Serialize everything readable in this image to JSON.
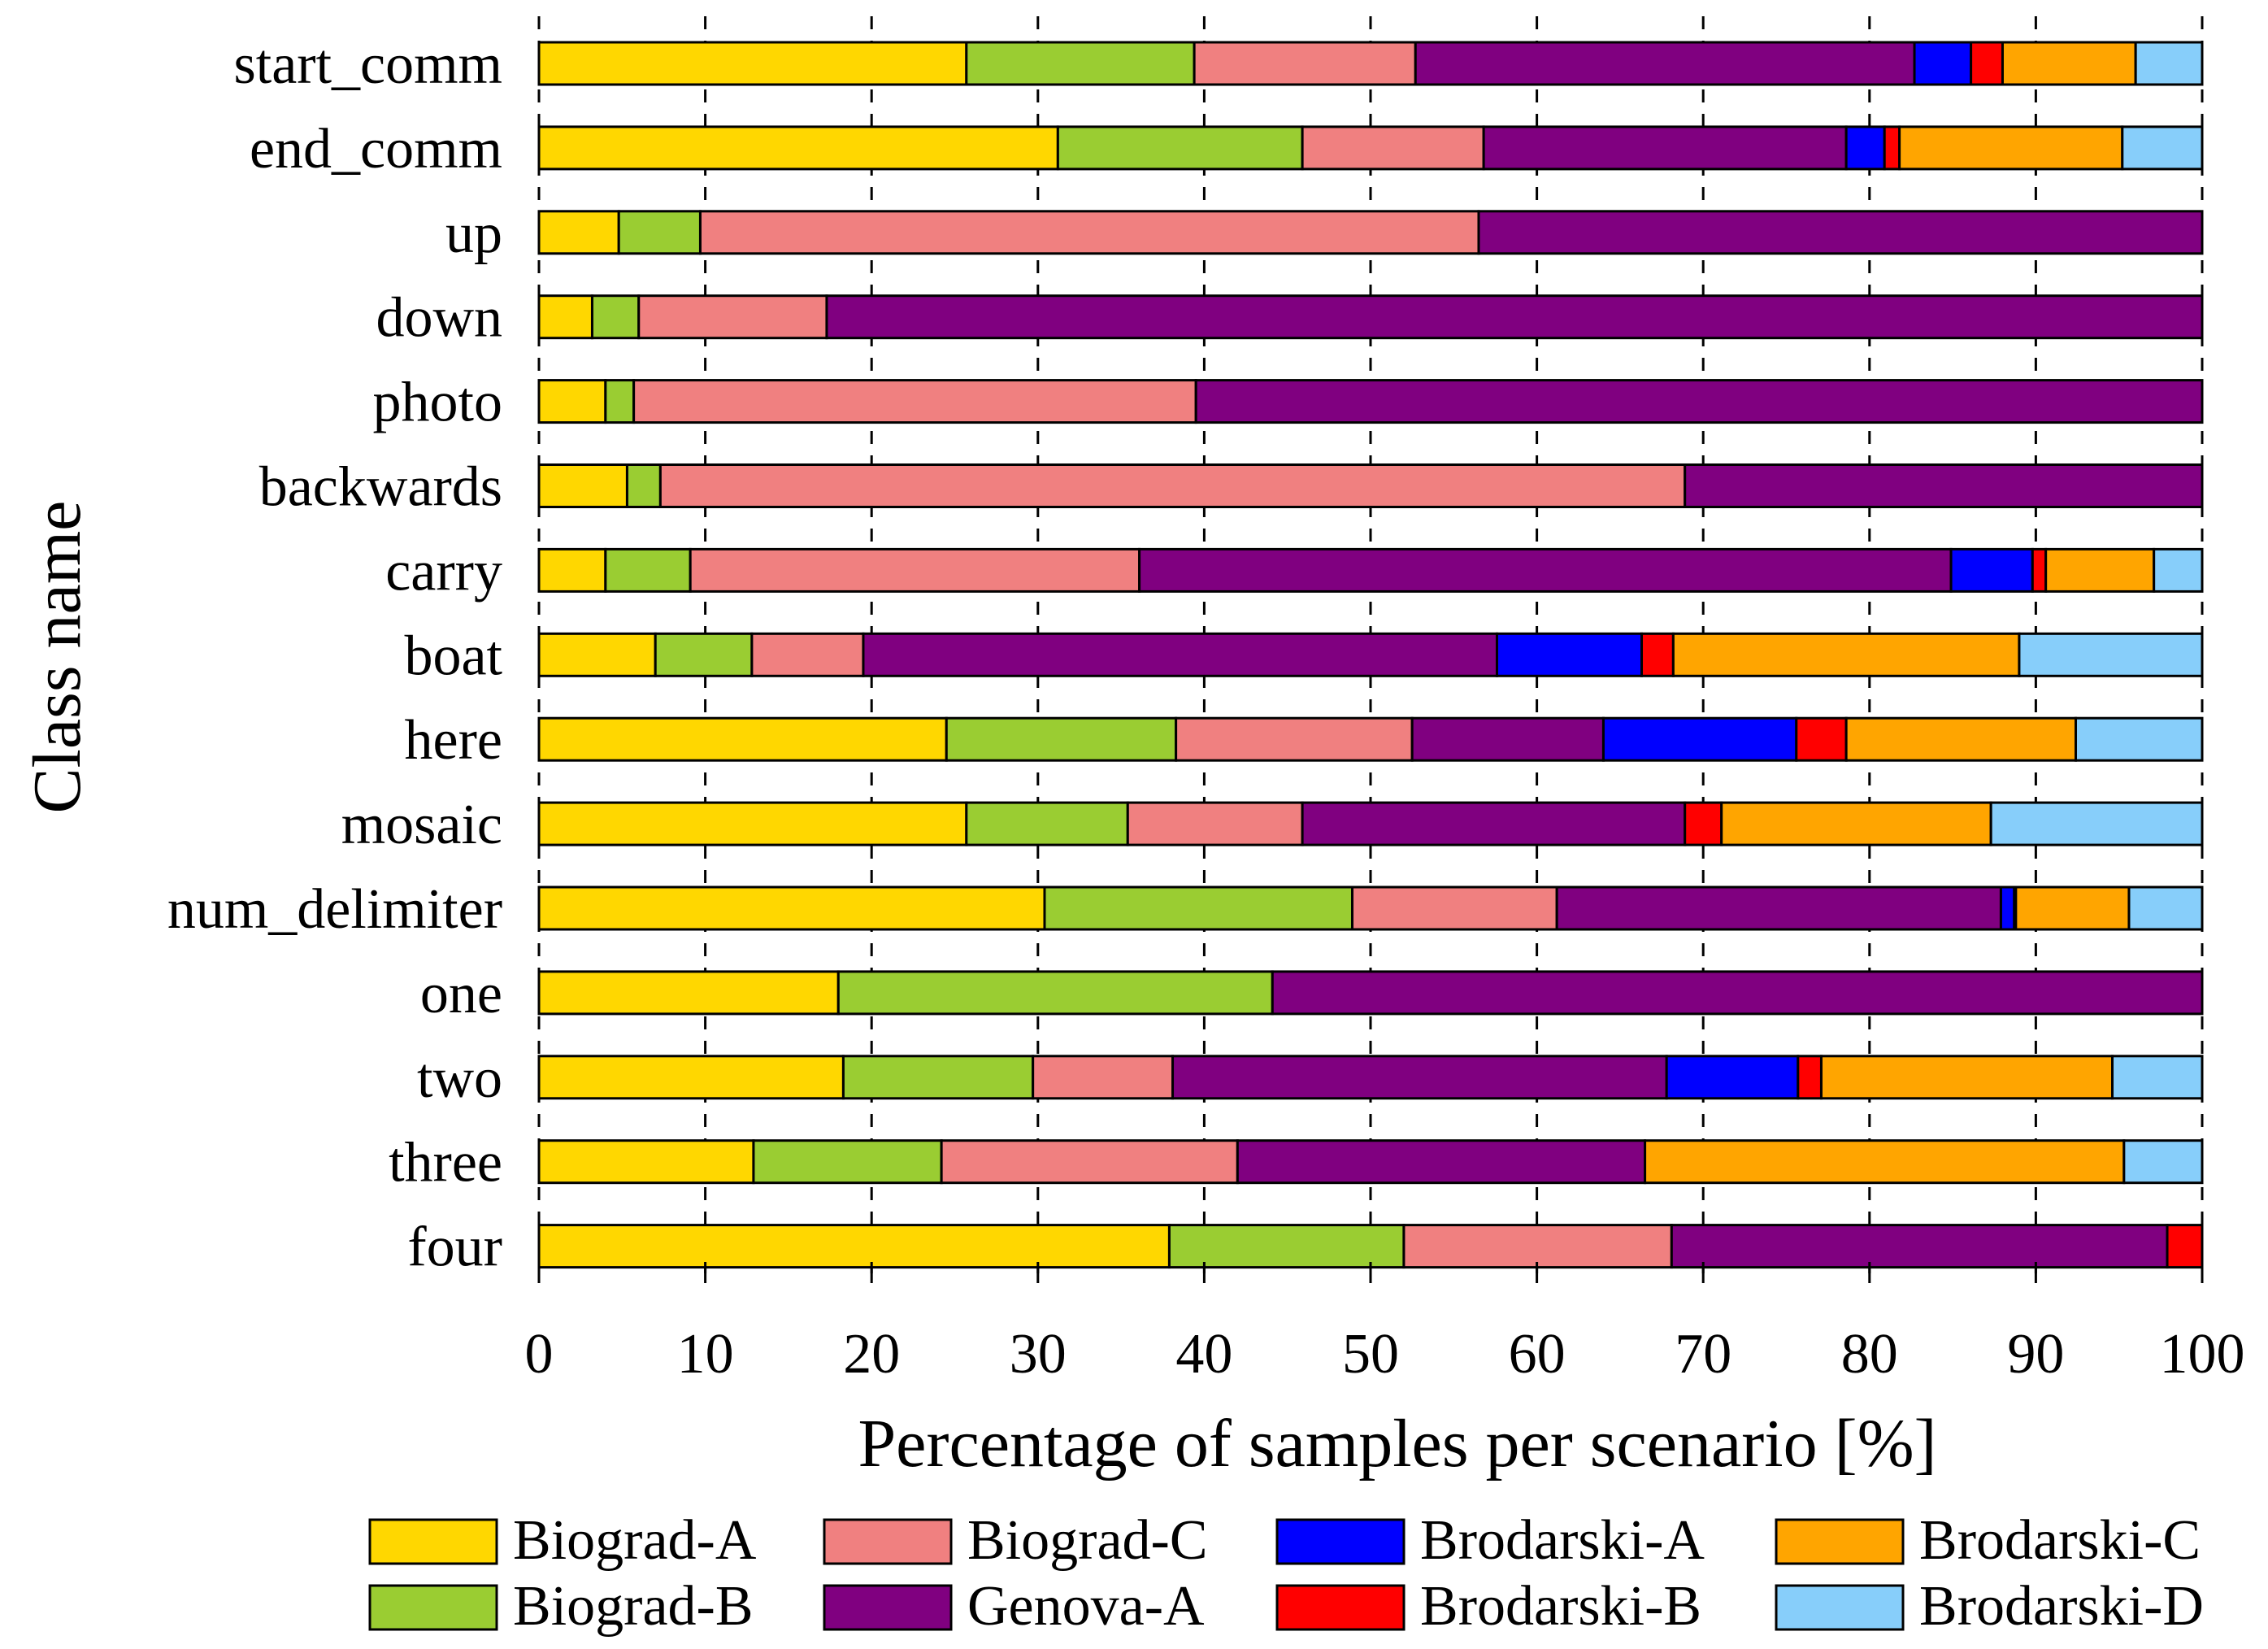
{
  "chart_data": {
    "type": "bar",
    "orientation": "horizontal",
    "stacked": true,
    "title": "",
    "xlabel": "Percentage of samples per scenario [%]",
    "ylabel": "Class name",
    "xlim": [
      0,
      100
    ],
    "xticks": [
      "0",
      "10",
      "20",
      "30",
      "40",
      "50",
      "60",
      "70",
      "80",
      "90",
      "100"
    ],
    "grid": "vertical dashed",
    "legend_position": "bottom",
    "categories": [
      "start_comm",
      "end_comm",
      "up",
      "down",
      "photo",
      "backwards",
      "carry",
      "boat",
      "here",
      "mosaic",
      "num_delimiter",
      "one",
      "two",
      "three",
      "four"
    ],
    "series": [
      {
        "name": "Biograd-A",
        "color": "#FFD700",
        "values": [
          25.7,
          31.2,
          4.8,
          3.2,
          4.0,
          5.3,
          4.0,
          7.0,
          24.5,
          25.7,
          30.4,
          18.0,
          18.3,
          12.9,
          37.9
        ]
      },
      {
        "name": "Biograd-B",
        "color": "#9ACD32",
        "values": [
          13.7,
          14.7,
          4.9,
          2.8,
          1.7,
          2.0,
          5.1,
          5.8,
          13.8,
          9.7,
          18.5,
          26.1,
          11.4,
          11.3,
          14.1
        ]
      },
      {
        "name": "Biograd-C",
        "color": "#F08080",
        "values": [
          13.3,
          10.9,
          46.8,
          11.3,
          33.8,
          61.6,
          27.0,
          6.7,
          14.2,
          10.5,
          12.3,
          0,
          8.4,
          17.8,
          16.1
        ]
      },
      {
        "name": "Genova-A",
        "color": "#800080",
        "values": [
          30.0,
          21.8,
          43.5,
          82.7,
          60.5,
          31.1,
          48.8,
          38.1,
          11.5,
          23.0,
          26.7,
          55.9,
          29.7,
          24.5,
          29.8
        ]
      },
      {
        "name": "Brodarski-A",
        "color": "#0000FF",
        "values": [
          3.4,
          2.3,
          0,
          0,
          0,
          0,
          4.9,
          8.7,
          11.6,
          0,
          0.8,
          0,
          7.9,
          0,
          0
        ]
      },
      {
        "name": "Brodarski-B",
        "color": "#FF0000",
        "values": [
          1.9,
          0.9,
          0,
          0,
          0,
          0,
          0.8,
          1.9,
          3.0,
          2.2,
          0.1,
          0,
          1.4,
          0,
          2.1
        ]
      },
      {
        "name": "Brodarski-C",
        "color": "#FFA500",
        "values": [
          8.0,
          13.4,
          0,
          0,
          0,
          0,
          6.5,
          20.8,
          13.8,
          16.2,
          6.8,
          0,
          17.5,
          28.8,
          0
        ]
      },
      {
        "name": "Brodarski-D",
        "color": "#87CEFA",
        "values": [
          4.0,
          4.8,
          0,
          0,
          0,
          0,
          2.9,
          11.0,
          7.6,
          12.7,
          4.4,
          0,
          5.4,
          4.7,
          0
        ]
      }
    ]
  }
}
